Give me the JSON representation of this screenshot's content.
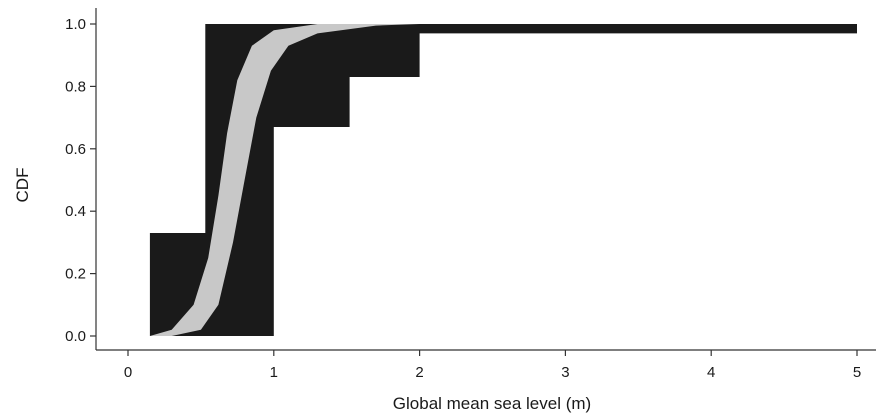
{
  "chart_data": {
    "type": "area",
    "xlabel": "Global mean sea level (m)",
    "ylabel": "CDF",
    "xlim": [
      0,
      5
    ],
    "ylim": [
      0,
      1
    ],
    "xticks": [
      "0",
      "1",
      "2",
      "3",
      "4",
      "5"
    ],
    "yticks": [
      "0.0",
      "0.2",
      "0.4",
      "0.6",
      "0.8",
      "1.0"
    ],
    "grid": false,
    "legend": "none",
    "colors": {
      "envelope": "#1a1a1a",
      "band": "#c8c8c8",
      "axis": "#333333"
    },
    "series": [
      {
        "kind": "envelope",
        "upper": [
          [
            0,
            0
          ],
          [
            0.15,
            0
          ],
          [
            0.15,
            0.33
          ],
          [
            0.53,
            0.33
          ],
          [
            0.53,
            1.0
          ],
          [
            5.0,
            1.0
          ]
        ],
        "lower": [
          [
            0,
            0
          ],
          [
            1.0,
            0
          ],
          [
            1.0,
            0.67
          ],
          [
            1.52,
            0.67
          ],
          [
            1.52,
            0.83
          ],
          [
            2.0,
            0.83
          ],
          [
            2.0,
            0.97
          ],
          [
            5.0,
            0.97
          ]
        ]
      },
      {
        "kind": "band",
        "left": [
          [
            0.15,
            0
          ],
          [
            0.3,
            0.02
          ],
          [
            0.45,
            0.1
          ],
          [
            0.55,
            0.25
          ],
          [
            0.62,
            0.45
          ],
          [
            0.68,
            0.65
          ],
          [
            0.75,
            0.82
          ],
          [
            0.85,
            0.93
          ],
          [
            1.0,
            0.98
          ],
          [
            1.3,
            1.0
          ]
        ],
        "right": [
          [
            0.3,
            0
          ],
          [
            0.5,
            0.02
          ],
          [
            0.62,
            0.1
          ],
          [
            0.72,
            0.3
          ],
          [
            0.8,
            0.5
          ],
          [
            0.88,
            0.7
          ],
          [
            0.98,
            0.85
          ],
          [
            1.1,
            0.93
          ],
          [
            1.3,
            0.97
          ],
          [
            1.7,
            0.995
          ],
          [
            2.0,
            1.0
          ]
        ]
      }
    ]
  }
}
